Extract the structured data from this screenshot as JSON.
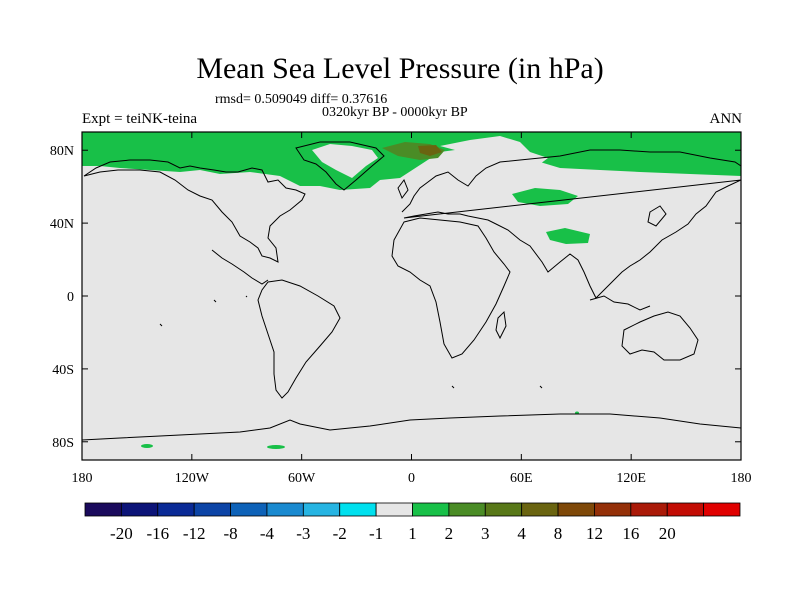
{
  "title": "Mean Sea Level Pressure (in hPa)",
  "stats_line": "rmsd= 0.509049 diff= 0.37616",
  "period_line": "0320kyr BP - 0000kyr BP",
  "experiment_label": "Expt = teiNK-teina",
  "season_label": "ANN",
  "map": {
    "projection": "cylindrical-equidistant",
    "lon_range": [
      -180,
      180
    ],
    "lat_range": [
      -90,
      90
    ],
    "background_color": "#e6e6e6",
    "lat_ticks": [
      {
        "value": 80,
        "label": "80N"
      },
      {
        "value": 40,
        "label": "40N"
      },
      {
        "value": 0,
        "label": "0"
      },
      {
        "value": -40,
        "label": "40S"
      },
      {
        "value": -80,
        "label": "80S"
      }
    ],
    "lon_ticks": [
      {
        "value": -180,
        "label": "180"
      },
      {
        "value": -120,
        "label": "120W"
      },
      {
        "value": -60,
        "label": "60W"
      },
      {
        "value": 0,
        "label": "0"
      },
      {
        "value": 60,
        "label": "60E"
      },
      {
        "value": 120,
        "label": "120E"
      },
      {
        "value": 180,
        "label": "180"
      }
    ]
  },
  "colorbar": {
    "colors": [
      "#1a0a5c",
      "#0c1478",
      "#0a2a96",
      "#0c44a6",
      "#0e62b8",
      "#1a8ad0",
      "#26b4e2",
      "#00e0ee",
      "#e6e6e6",
      "#18c048",
      "#4a8c26",
      "#587818",
      "#6a6410",
      "#7e4808",
      "#943008",
      "#aa1a08",
      "#c20c04",
      "#e00000"
    ],
    "labels": [
      "-20",
      "-16",
      "-12",
      "-8",
      "-4",
      "-3",
      "-2",
      "-1",
      "1",
      "2",
      "3",
      "4",
      "8",
      "12",
      "16",
      "20"
    ]
  }
}
